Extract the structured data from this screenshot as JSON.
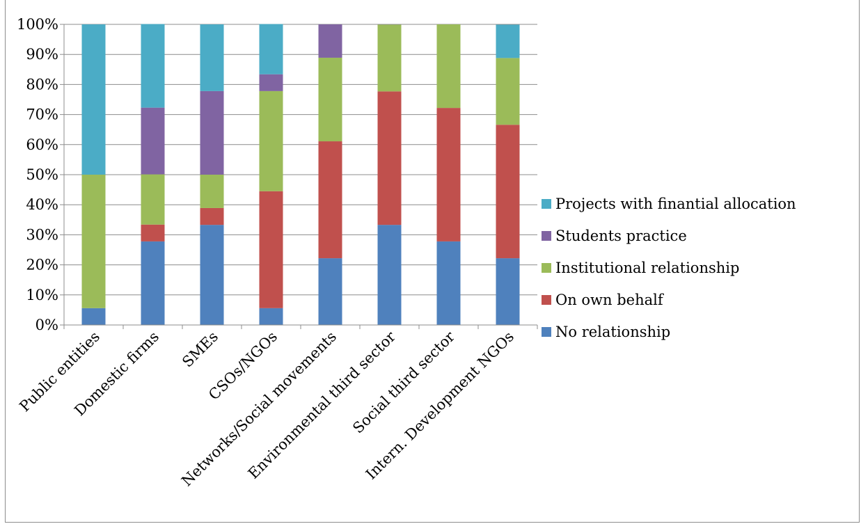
{
  "chart_data": {
    "type": "bar",
    "stacked": true,
    "percent": true,
    "categories": [
      "Public entities",
      "Domestic firms",
      "SMEs",
      "CSOs/NGOs",
      "Networks/Social movements",
      "Environmental third sector",
      "Social third sector",
      "Intern. Development NGOs"
    ],
    "series": [
      {
        "name": "No relationship",
        "color": "#4F81BD",
        "values": [
          5.6,
          27.8,
          33.3,
          5.6,
          22.2,
          33.3,
          27.8,
          22.2
        ]
      },
      {
        "name": "On own behalf",
        "color": "#C0504D",
        "values": [
          0,
          5.6,
          5.6,
          38.9,
          38.9,
          44.4,
          44.4,
          44.4
        ]
      },
      {
        "name": "Institutional relationship",
        "color": "#9BBB59",
        "values": [
          44.4,
          16.7,
          11.1,
          33.3,
          27.8,
          22.2,
          27.8,
          22.2
        ]
      },
      {
        "name": "Students practice",
        "color": "#8064A2",
        "values": [
          0,
          22.2,
          27.8,
          5.6,
          11.1,
          0,
          0,
          0
        ]
      },
      {
        "name": "Projects with finantial allocation",
        "color": "#4BACC6",
        "values": [
          50,
          27.8,
          22.2,
          16.7,
          0,
          0,
          0,
          11.1
        ]
      }
    ],
    "yticks": [
      "0%",
      "10%",
      "20%",
      "30%",
      "40%",
      "50%",
      "60%",
      "70%",
      "80%",
      "90%",
      "100%"
    ],
    "ylim": [
      0,
      100
    ],
    "grid": true,
    "legend": "right",
    "title": "",
    "xlabel": "",
    "ylabel": ""
  },
  "legend_order": [
    "Projects with finantial allocation",
    "Students practice",
    "Institutional relationship",
    "On own behalf",
    "No relationship"
  ]
}
